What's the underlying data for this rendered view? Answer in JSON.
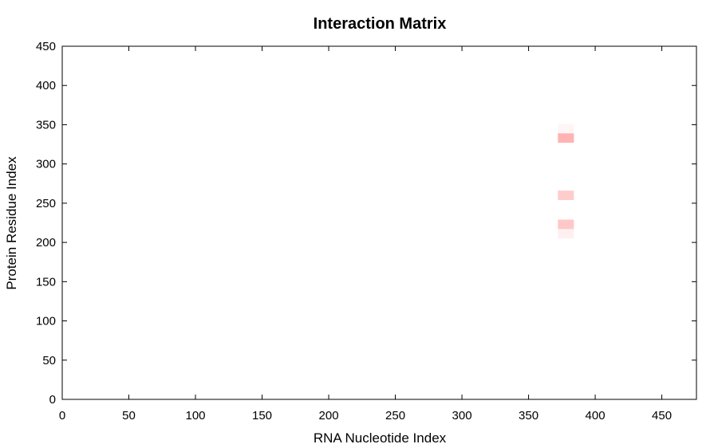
{
  "chart_data": {
    "type": "heatmap",
    "title": "Interaction Matrix",
    "xlabel": "RNA Nucleotide Index",
    "ylabel": "Protein Residue Index",
    "xlim": [
      0,
      476
    ],
    "ylim": [
      0,
      450
    ],
    "xticks": [
      0,
      50,
      100,
      150,
      200,
      250,
      300,
      350,
      400,
      450
    ],
    "yticks": [
      0,
      50,
      100,
      150,
      200,
      250,
      300,
      350,
      400,
      450
    ],
    "grid": false,
    "cell_width": 12,
    "cell_height": 12,
    "color_low": "#ffffff",
    "color_high": "#ff9999",
    "cells": [
      {
        "x": 372,
        "y": 339,
        "value": 0.1
      },
      {
        "x": 372,
        "y": 327,
        "value": 0.75
      },
      {
        "x": 372,
        "y": 254,
        "value": 0.5
      },
      {
        "x": 372,
        "y": 217,
        "value": 0.55
      },
      {
        "x": 372,
        "y": 205,
        "value": 0.15
      }
    ]
  }
}
